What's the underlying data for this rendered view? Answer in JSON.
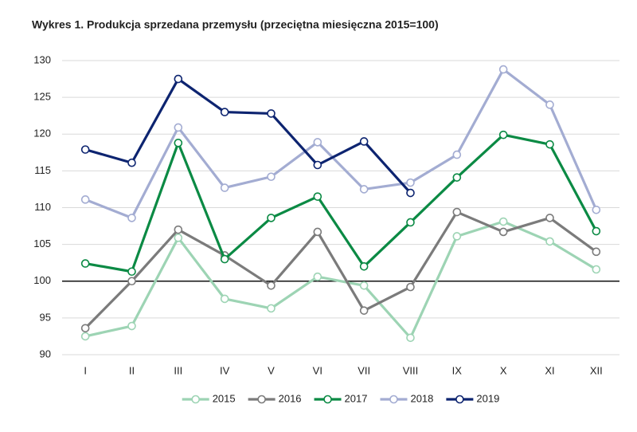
{
  "chart_data": {
    "type": "line",
    "title": "Wykres 1. Produkcja sprzedana przemysłu (przeciętna miesięczna 2015=100)",
    "categories": [
      "I",
      "II",
      "III",
      "IV",
      "V",
      "VI",
      "VII",
      "VIII",
      "IX",
      "X",
      "XI",
      "XII"
    ],
    "series": [
      {
        "name": "2015",
        "color": "#9dd4b4",
        "values": [
          92.5,
          93.9,
          105.9,
          97.6,
          96.3,
          100.6,
          99.4,
          92.3,
          106.1,
          108.1,
          105.4,
          101.6
        ]
      },
      {
        "name": "2016",
        "color": "#7b7b7b",
        "values": [
          93.6,
          100.0,
          107.0,
          103.5,
          99.4,
          106.7,
          96.0,
          99.2,
          109.4,
          106.7,
          108.6,
          104.0
        ]
      },
      {
        "name": "2017",
        "color": "#0b8a44",
        "values": [
          102.4,
          101.3,
          118.8,
          103.0,
          108.6,
          111.5,
          102.0,
          108.0,
          114.1,
          119.9,
          118.6,
          106.8
        ]
      },
      {
        "name": "2018",
        "color": "#a3acd2",
        "values": [
          111.1,
          108.6,
          120.9,
          112.7,
          114.2,
          118.9,
          112.5,
          113.4,
          117.2,
          128.8,
          124.0,
          109.7
        ]
      },
      {
        "name": "2019",
        "color": "#0d2470",
        "values": [
          117.9,
          116.1,
          127.5,
          123.0,
          122.8,
          115.8,
          119.0,
          112.0,
          null,
          null,
          null,
          null
        ]
      }
    ],
    "ylim": [
      90,
      130
    ],
    "yticks": [
      90,
      95,
      100,
      105,
      110,
      115,
      120,
      125,
      130
    ],
    "grid": true,
    "reference_line": 100,
    "legend": "bottom"
  }
}
